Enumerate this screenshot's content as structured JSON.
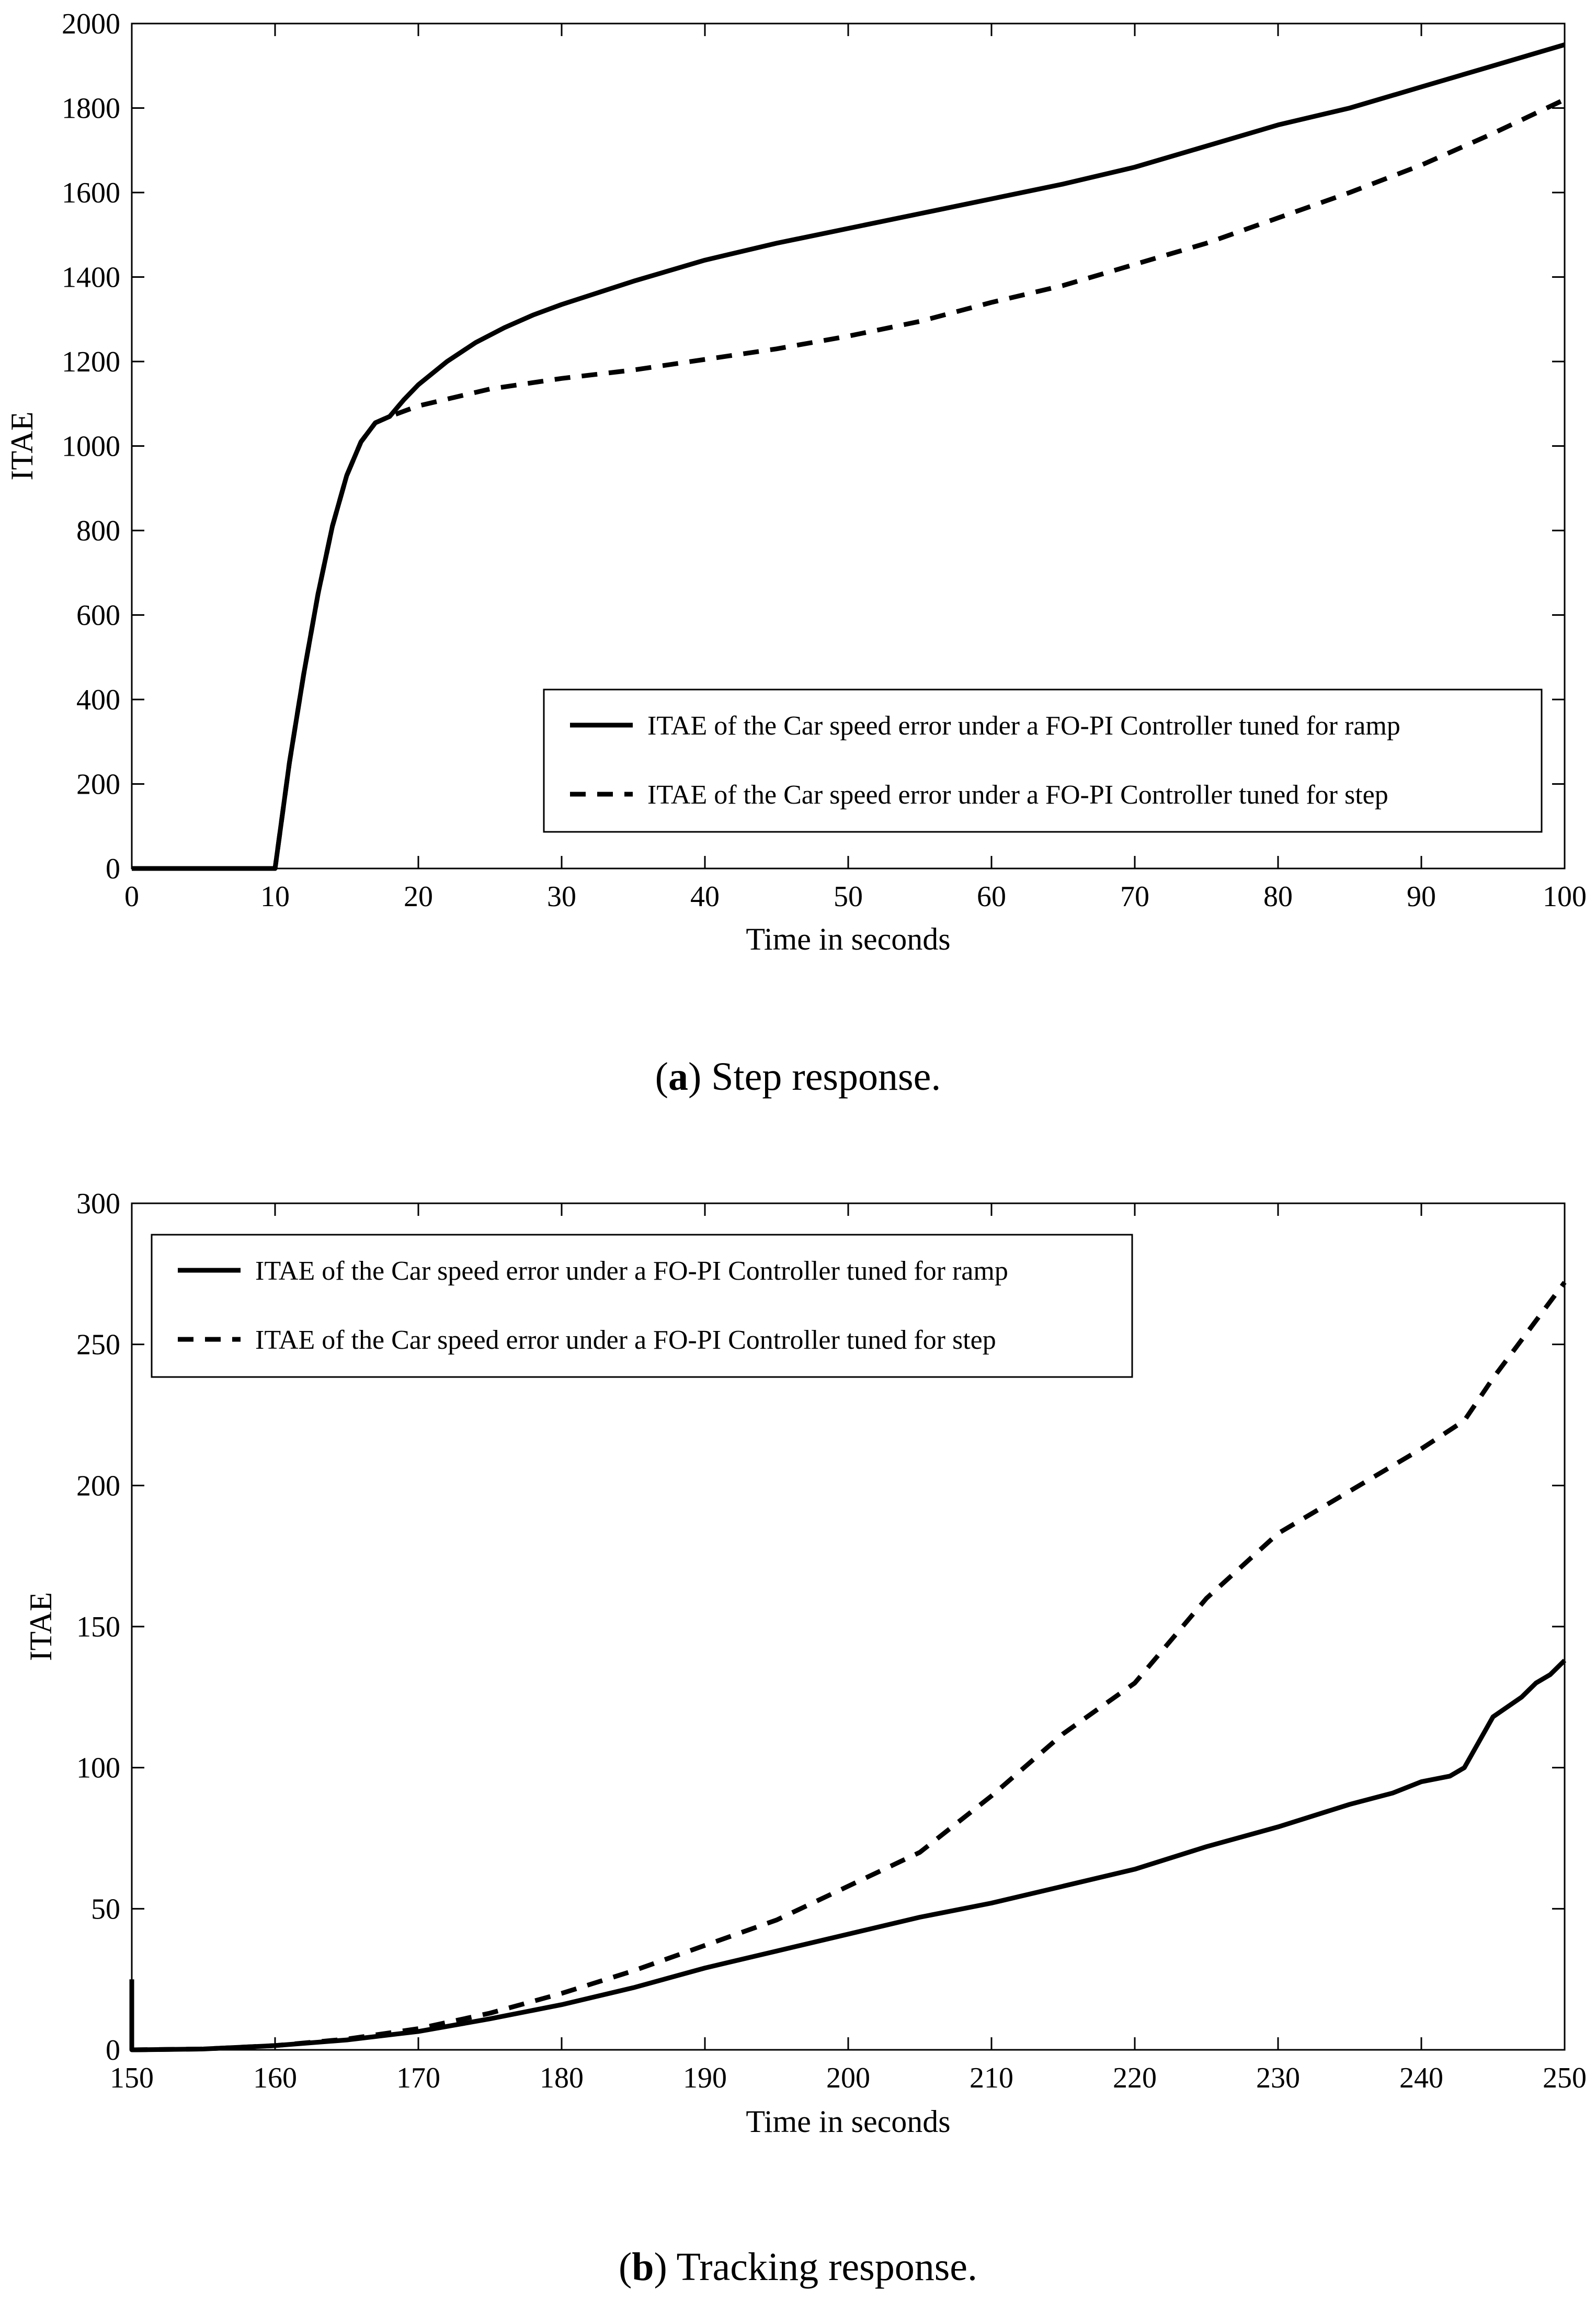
{
  "chart_data": [
    {
      "id": "a",
      "type": "line",
      "title": "",
      "xlabel": "Time in seconds",
      "ylabel": "ITAE",
      "xlim": [
        0,
        100
      ],
      "ylim": [
        0,
        2000
      ],
      "xticks": [
        0,
        10,
        20,
        30,
        40,
        50,
        60,
        70,
        80,
        90,
        100
      ],
      "yticks": [
        0,
        200,
        400,
        600,
        800,
        1000,
        1200,
        1400,
        1600,
        1800,
        2000
      ],
      "legend_position": "lower-right",
      "caption_label": "a",
      "caption_text": ") Step response.",
      "series": [
        {
          "name": "ITAE of  the Car speed error under a FO-PI Controller tuned for ramp",
          "style": "solid",
          "x": [
            0,
            9.9,
            10,
            11,
            12,
            13,
            14,
            15,
            16,
            17,
            18,
            19,
            20,
            22,
            24,
            26,
            28,
            30,
            35,
            40,
            45,
            50,
            55,
            60,
            65,
            70,
            75,
            80,
            85,
            90,
            95,
            100
          ],
          "y": [
            0,
            0,
            0,
            250,
            460,
            650,
            810,
            930,
            1010,
            1055,
            1070,
            1110,
            1145,
            1200,
            1245,
            1280,
            1310,
            1335,
            1390,
            1440,
            1480,
            1515,
            1550,
            1585,
            1620,
            1660,
            1710,
            1760,
            1800,
            1850,
            1900,
            1950
          ]
        },
        {
          "name": "ITAE of  the Car speed error under a FO-PI Controller tuned for step",
          "style": "dashed",
          "x": [
            0,
            9.9,
            10,
            11,
            12,
            13,
            14,
            15,
            16,
            17,
            18,
            20,
            25,
            30,
            35,
            40,
            45,
            50,
            55,
            60,
            65,
            70,
            75,
            80,
            85,
            90,
            95,
            100
          ],
          "y": [
            0,
            0,
            0,
            250,
            460,
            650,
            810,
            930,
            1010,
            1055,
            1070,
            1095,
            1135,
            1160,
            1180,
            1205,
            1230,
            1260,
            1295,
            1340,
            1380,
            1430,
            1480,
            1540,
            1600,
            1665,
            1740,
            1820
          ]
        }
      ]
    },
    {
      "id": "b",
      "type": "line",
      "title": "",
      "xlabel": "Time in seconds",
      "ylabel": "ITAE",
      "xlim": [
        150,
        250
      ],
      "ylim": [
        0,
        300
      ],
      "xticks": [
        150,
        160,
        170,
        180,
        190,
        200,
        210,
        220,
        230,
        240,
        250
      ],
      "yticks": [
        0,
        50,
        100,
        150,
        200,
        250,
        300
      ],
      "legend_position": "top-left",
      "caption_label": "b",
      "caption_text": ") Tracking response.",
      "series": [
        {
          "name": "ITAE of  the Car speed error under a FO-PI Controller tuned for ramp",
          "style": "solid",
          "x": [
            150,
            150,
            150.3,
            155,
            160,
            165,
            170,
            175,
            180,
            185,
            190,
            195,
            200,
            205,
            210,
            215,
            220,
            225,
            230,
            235,
            238,
            240,
            242,
            243,
            245,
            247,
            248,
            249,
            250
          ],
          "y": [
            25,
            0,
            0,
            0.3,
            1.5,
            3.5,
            6.5,
            11,
            16,
            22,
            29,
            35,
            41,
            47,
            52,
            58,
            64,
            72,
            79,
            87,
            91,
            95,
            97,
            100,
            118,
            125,
            130,
            133,
            138
          ]
        },
        {
          "name": "ITAE of  the Car speed error under a FO-PI Controller tuned for step",
          "style": "dashed",
          "x": [
            150,
            155,
            160,
            165,
            170,
            175,
            180,
            185,
            190,
            195,
            200,
            205,
            210,
            215,
            220,
            225,
            230,
            235,
            240,
            243,
            245,
            250
          ],
          "y": [
            0,
            0.3,
            1.5,
            3.8,
            7.5,
            13,
            20,
            28,
            37,
            46,
            58,
            70,
            90,
            112,
            130,
            160,
            183,
            198,
            213,
            223,
            238,
            272
          ]
        }
      ]
    }
  ]
}
